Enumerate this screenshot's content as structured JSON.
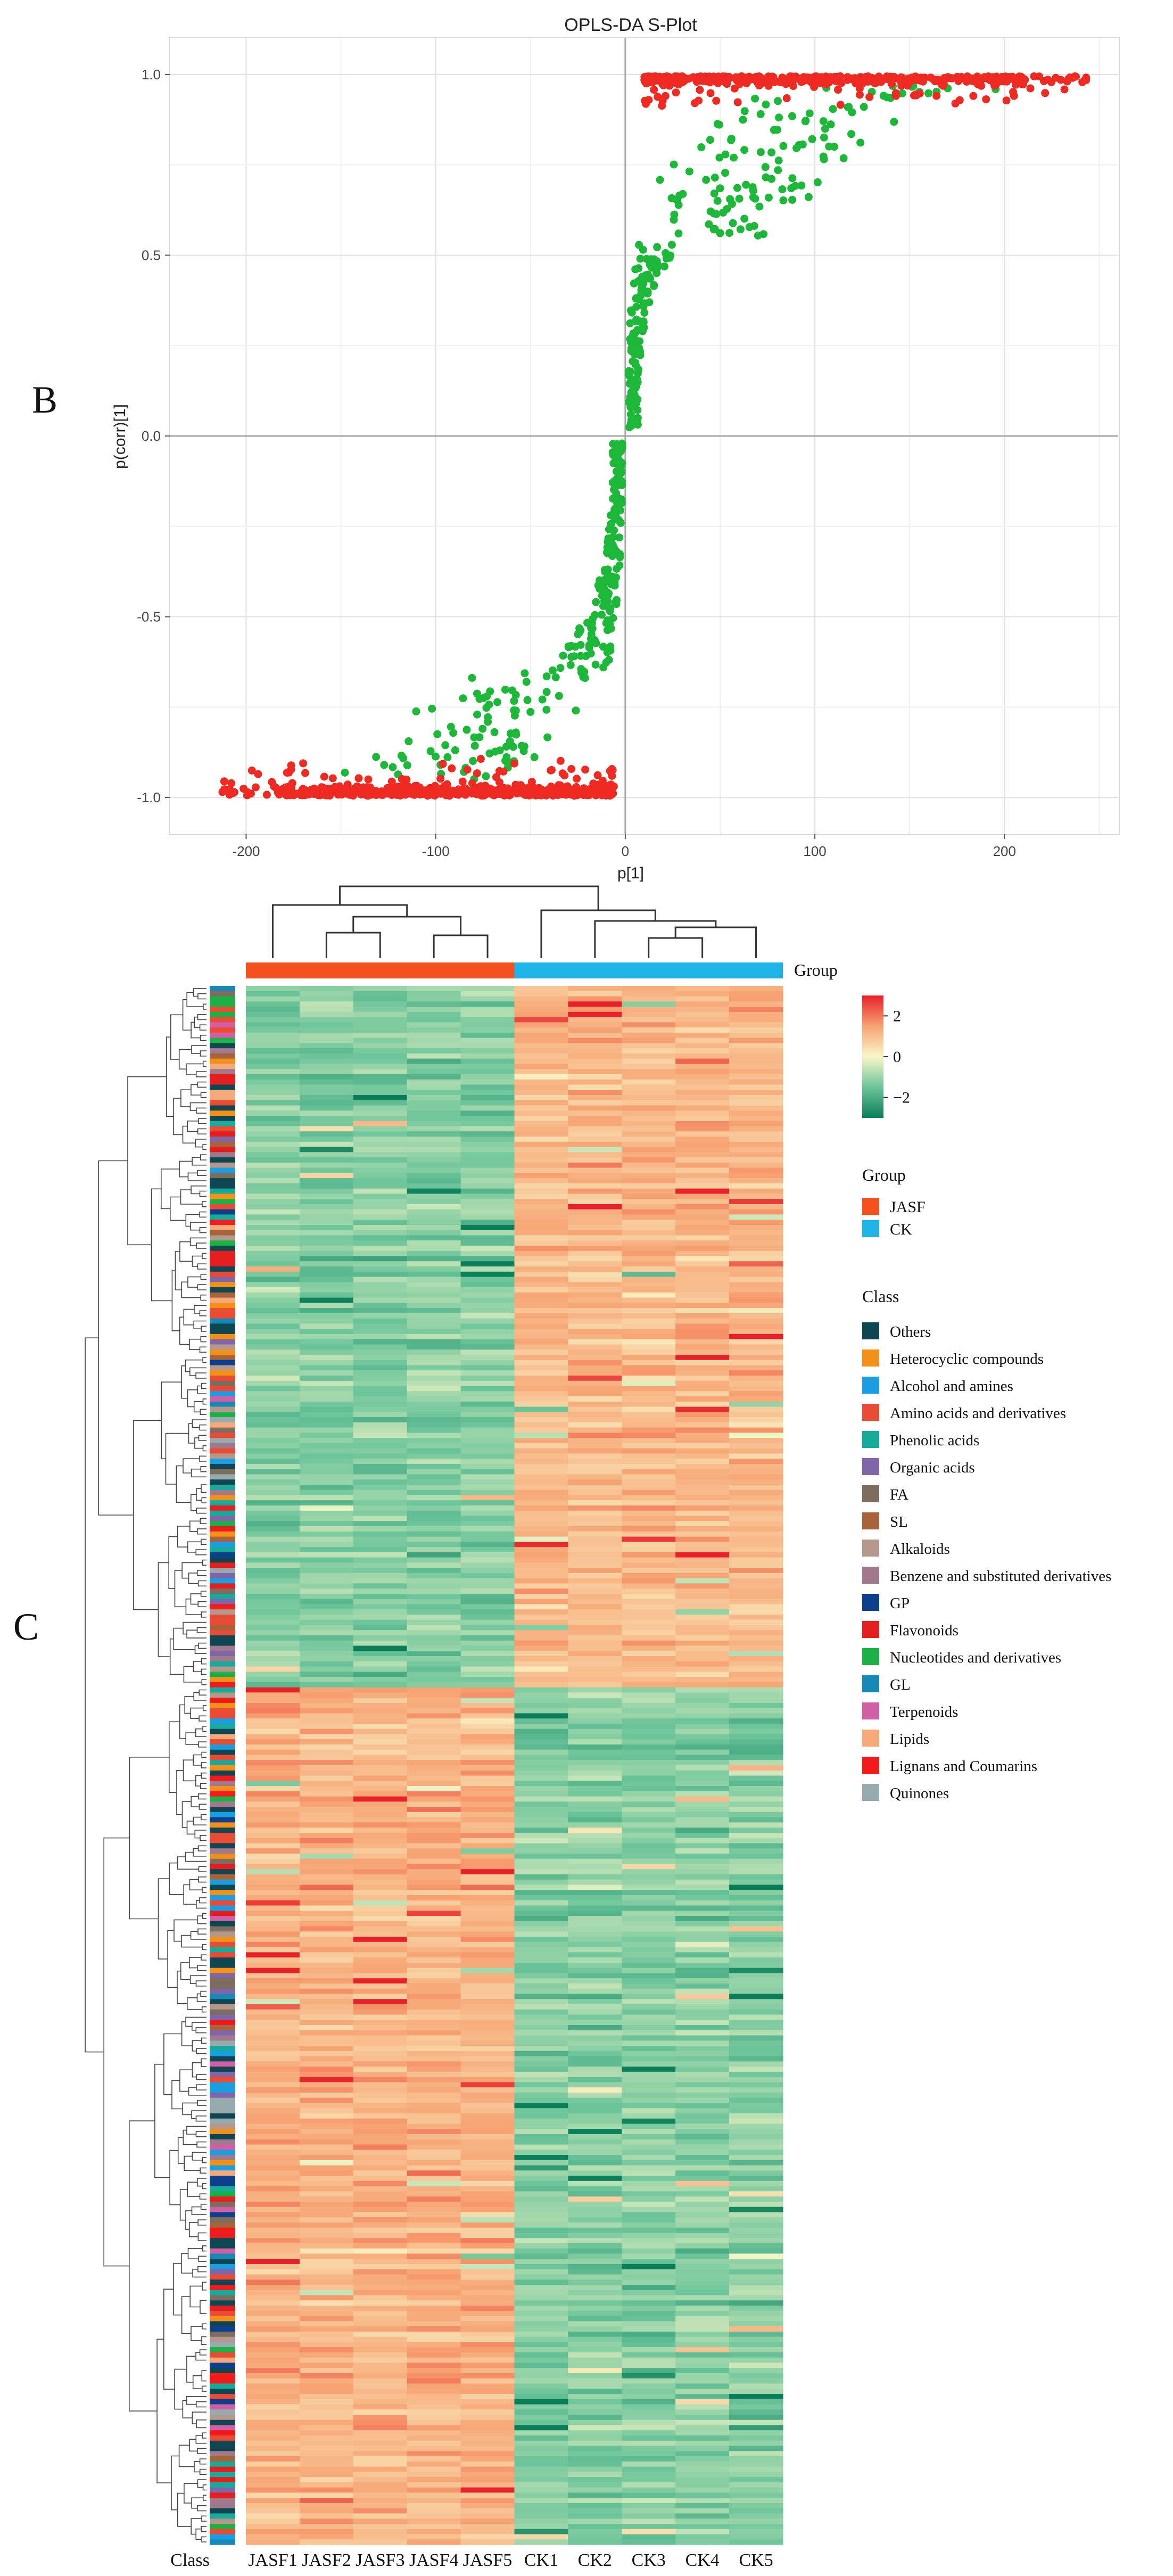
{
  "panel_labels": {
    "b": "B",
    "c": "C"
  },
  "chart_data": [
    {
      "type": "scatter",
      "title": "OPLS-DA S-Plot",
      "xlabel": "p[1]",
      "ylabel": "p(corr)[1]",
      "xlim": [
        -240,
        260
      ],
      "ylim": [
        -1.1,
        1.1
      ],
      "x_ticks": [
        -200,
        -100,
        0,
        100,
        200
      ],
      "y_ticks": [
        -1.0,
        -0.5,
        0.0,
        0.5,
        1.0
      ],
      "x_tick_labels": [
        "-200",
        "-100",
        "0",
        "100",
        "200"
      ],
      "y_tick_labels": [
        "-1.0",
        "-0.5",
        "0.0",
        "0.5",
        "1.0"
      ],
      "grid": true,
      "colors": {
        "significant": "#ee2a22",
        "other": "#1db83a",
        "panel_bg": "#ffffff",
        "grid": "#e4e4e4",
        "zero_line": "#a8a8a8"
      },
      "point_groups": [
        {
          "color_key": "significant",
          "x_range": [
            10,
            250
          ],
          "y_range": [
            0.9,
            1.0
          ],
          "count": 560
        },
        {
          "color_key": "significant",
          "x_range": [
            -215,
            -5
          ],
          "y_range": [
            -1.0,
            -0.9
          ],
          "count": 560
        },
        {
          "color_key": "other",
          "x_range": [
            0,
            175
          ],
          "y_range": [
            0.0,
            0.97
          ],
          "count": 250
        },
        {
          "color_key": "other",
          "x_range": [
            -155,
            0
          ],
          "y_range": [
            -0.97,
            0.0
          ],
          "count": 250
        }
      ]
    },
    {
      "type": "heatmap",
      "columns": [
        "JASF1",
        "JASF2",
        "JASF3",
        "JASF4",
        "JASF5",
        "CK1",
        "CK2",
        "CK3",
        "CK4",
        "CK5"
      ],
      "class_axis_label": "Class",
      "group_track_label": "Group",
      "groups": [
        {
          "name": "JASF",
          "color": "#f4511e",
          "columns": [
            "JASF1",
            "JASF2",
            "JASF3",
            "JASF4",
            "JASF5"
          ]
        },
        {
          "name": "CK",
          "color": "#1eb4e8",
          "columns": [
            "CK1",
            "CK2",
            "CK3",
            "CK4",
            "CK5"
          ]
        }
      ],
      "color_scale": {
        "min": -3,
        "max": 3,
        "stops": [
          "#0a7e5a",
          "#6cc49a",
          "#f9f6c8",
          "#f7a272",
          "#e8202a"
        ],
        "ticks": [
          2,
          0,
          -2
        ],
        "tick_labels": [
          "2",
          "0",
          "−2"
        ]
      },
      "row_blocks": [
        {
          "fraction": 0.45,
          "JASF": -1.2,
          "CK": 1.1
        },
        {
          "fraction": 0.55,
          "JASF": 1.2,
          "CK": -1.2
        }
      ],
      "row_count": 300,
      "legend_group_title": "Group",
      "legend_class_title": "Class",
      "classes": [
        {
          "name": "Others",
          "color": "#0f4652"
        },
        {
          "name": "Heterocyclic compounds",
          "color": "#f39019"
        },
        {
          "name": "Alcohol and amines",
          "color": "#1b9de2"
        },
        {
          "name": "Amino acids and derivatives",
          "color": "#ea4b35"
        },
        {
          "name": "Phenolic acids",
          "color": "#17a99a"
        },
        {
          "name": "Organic acids",
          "color": "#8066a8"
        },
        {
          "name": "FA",
          "color": "#7c6d5e"
        },
        {
          "name": "SL",
          "color": "#a8633a"
        },
        {
          "name": "Alkaloids",
          "color": "#b5978c"
        },
        {
          "name": "Benzene and substituted derivatives",
          "color": "#a07a8c"
        },
        {
          "name": "GP",
          "color": "#0e3f8c"
        },
        {
          "name": "Flavonoids",
          "color": "#e51f1f"
        },
        {
          "name": "Nucleotides and derivatives",
          "color": "#1cb047"
        },
        {
          "name": "GL",
          "color": "#1789b8"
        },
        {
          "name": "Terpenoids",
          "color": "#d15fa5"
        },
        {
          "name": "Lipids",
          "color": "#f5a97a"
        },
        {
          "name": "Lignans and Coumarins",
          "color": "#f21a1a"
        },
        {
          "name": "Quinones",
          "color": "#97aaad"
        }
      ]
    }
  ]
}
